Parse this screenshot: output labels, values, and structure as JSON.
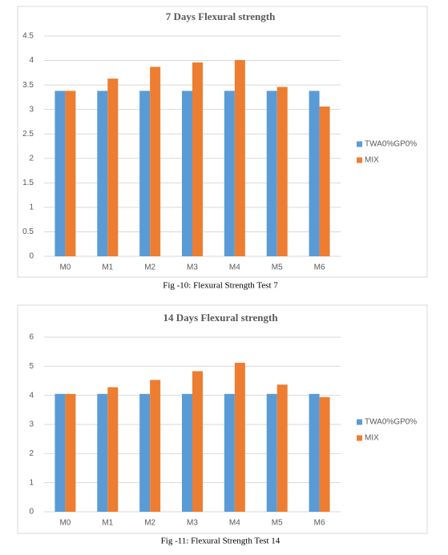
{
  "chart_data": [
    {
      "type": "bar",
      "title": "7 Days Flexural strength",
      "caption": "Fig -10:   Flexural Strength Test 7",
      "categories": [
        "M0",
        "M1",
        "M2",
        "M3",
        "M4",
        "M5",
        "M6"
      ],
      "series": [
        {
          "name": "TWA0%GP0%",
          "color": "#5b9bd5",
          "values": [
            3.38,
            3.38,
            3.38,
            3.38,
            3.38,
            3.38,
            3.38
          ]
        },
        {
          "name": "MIX",
          "color": "#ed7d31",
          "values": [
            3.38,
            3.63,
            3.87,
            3.96,
            4.01,
            3.46,
            3.06
          ]
        }
      ],
      "ylim": [
        0,
        4.5
      ],
      "yticks": [
        0,
        0.5,
        1,
        1.5,
        2,
        2.5,
        3,
        3.5,
        4,
        4.5
      ],
      "grid": true,
      "legend": "right"
    },
    {
      "type": "bar",
      "title": "14 Days Flexural strength",
      "caption": "Fig -11:   Flexural Strength Test 14",
      "categories": [
        "M0",
        "M1",
        "M2",
        "M3",
        "M4",
        "M5",
        "M6"
      ],
      "series": [
        {
          "name": "TWA0%GP0%",
          "color": "#5b9bd5",
          "values": [
            4.05,
            4.05,
            4.05,
            4.05,
            4.05,
            4.05,
            4.05
          ]
        },
        {
          "name": "MIX",
          "color": "#ed7d31",
          "values": [
            4.05,
            4.28,
            4.53,
            4.83,
            5.12,
            4.37,
            3.94
          ]
        }
      ],
      "ylim": [
        0,
        6
      ],
      "yticks": [
        0,
        1,
        2,
        3,
        4,
        5,
        6
      ],
      "grid": true,
      "legend": "right"
    }
  ]
}
